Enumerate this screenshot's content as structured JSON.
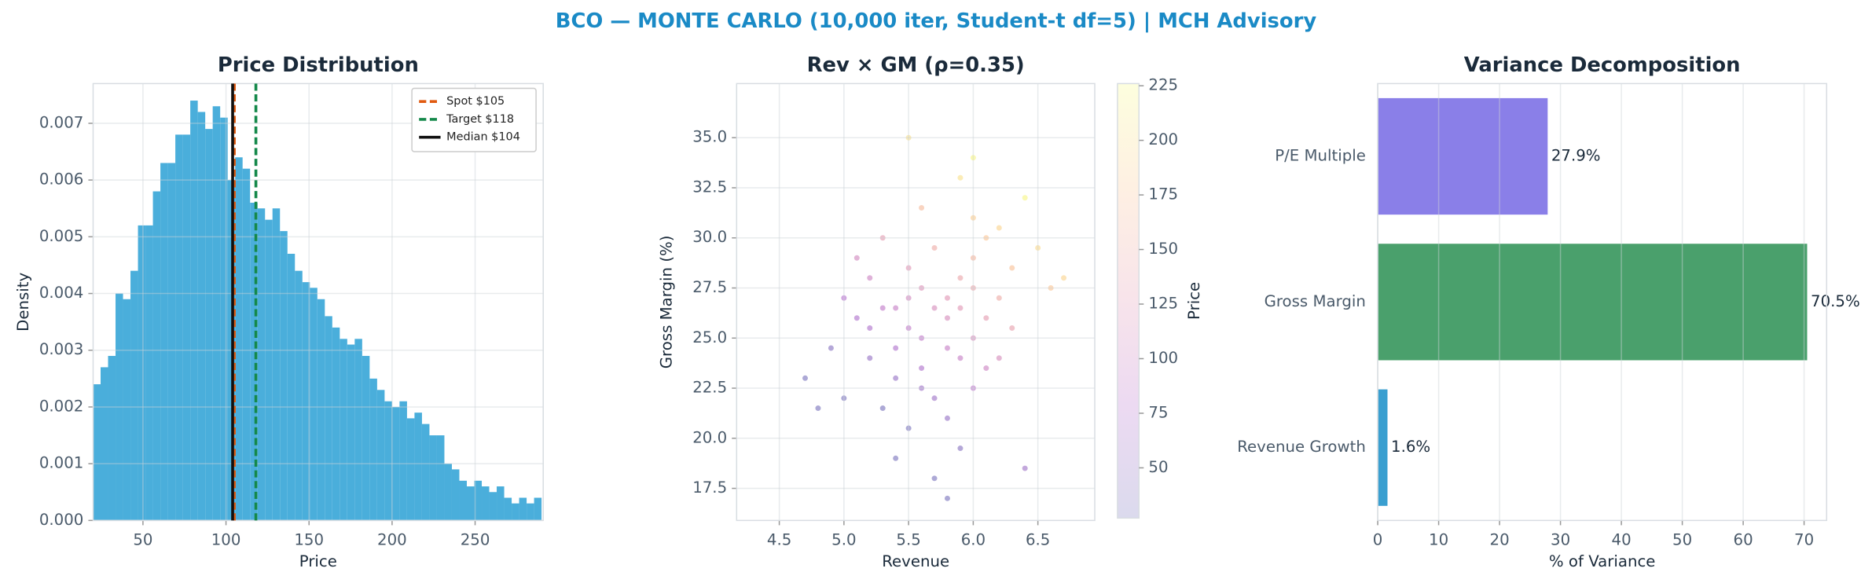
{
  "title": "BCO — MONTE CARLO (10,000 iter, Student-t df=5) | MCH Advisory",
  "chart_data": [
    {
      "type": "histogram",
      "title": "Price Distribution",
      "xlabel": "Price",
      "ylabel": "Density",
      "color": "#4aaedb",
      "grid": true,
      "bins": [
        20,
        24.5,
        29,
        33.5,
        38,
        42.5,
        47,
        51.5,
        56,
        60.5,
        65,
        69.5,
        74,
        78.5,
        83,
        87.5,
        92,
        96.5,
        101,
        105.5,
        110,
        114.5,
        119,
        123.5,
        128,
        132.5,
        137,
        141.5,
        146,
        150.5,
        155,
        159.5,
        164,
        168.5,
        173,
        177.5,
        182,
        186.5,
        191,
        195.5,
        200,
        204.5,
        209,
        213.5,
        218,
        222.5,
        227,
        231.5,
        236,
        240.5,
        245,
        249.5,
        254,
        258.5,
        263,
        267.5,
        272,
        276.5,
        281,
        285.5,
        290
      ],
      "values": [
        0.0024,
        0.0027,
        0.0029,
        0.004,
        0.0039,
        0.0044,
        0.0052,
        0.0052,
        0.0058,
        0.0063,
        0.0063,
        0.0068,
        0.0068,
        0.0074,
        0.0072,
        0.0069,
        0.0073,
        0.0071,
        0.006,
        0.0064,
        0.0062,
        0.0056,
        0.0055,
        0.0053,
        0.0055,
        0.0051,
        0.0047,
        0.0044,
        0.0042,
        0.0041,
        0.0039,
        0.0036,
        0.0034,
        0.0032,
        0.0031,
        0.0032,
        0.0029,
        0.0025,
        0.0023,
        0.0021,
        0.002,
        0.0021,
        0.0018,
        0.0019,
        0.0017,
        0.0015,
        0.0015,
        0.001,
        0.0009,
        0.0007,
        0.0006,
        0.0007,
        0.0006,
        0.0005,
        0.0006,
        0.0004,
        0.0003,
        0.0004,
        0.0003,
        0.0004
      ],
      "xlim": [
        20,
        291
      ],
      "xticks": [
        50,
        100,
        150,
        200,
        250
      ],
      "ylim": [
        0,
        0.0077
      ],
      "yticks": [
        {
          "value": 0,
          "label": "0.000"
        },
        {
          "value": 0.001,
          "label": "0.001"
        },
        {
          "value": 0.002,
          "label": "0.002"
        },
        {
          "value": 0.003,
          "label": "0.003"
        },
        {
          "value": 0.004,
          "label": "0.004"
        },
        {
          "value": 0.005,
          "label": "0.005"
        },
        {
          "value": 0.006,
          "label": "0.006"
        },
        {
          "value": 0.007,
          "label": "0.007"
        }
      ],
      "legend": "upper right",
      "vlines": [
        {
          "name": "Spot $105",
          "value": 105,
          "color": "#e05a10",
          "style": "dashed"
        },
        {
          "name": "Target $118",
          "value": 118,
          "color": "#14884a",
          "style": "dashed"
        },
        {
          "name": "Median $104",
          "value": 104,
          "color": "#111111",
          "style": "solid"
        }
      ]
    },
    {
      "type": "scatter",
      "title": "Rev × GM (ρ=0.35)",
      "xlabel": "Revenue",
      "ylabel": "Gross Margin (%)",
      "grid": true,
      "x": [
        5.2,
        5.4,
        5.6,
        5.8,
        6.0,
        6.2,
        5.5,
        5.7,
        5.9,
        6.1,
        5.3,
        5.6,
        5.8,
        6.0,
        6.3,
        5.1,
        5.4,
        5.7,
        6.0,
        6.4,
        4.9,
        5.2,
        5.5,
        5.8,
        6.1,
        6.5,
        5.0,
        5.3,
        5.6,
        5.9,
        6.2,
        6.6,
        5.4,
        5.7,
        6.0,
        5.5,
        5.8,
        6.1,
        5.2,
        5.6,
        5.9,
        6.3,
        5.0,
        5.4,
        5.7,
        6.0,
        5.3,
        5.6,
        5.9,
        6.2,
        4.7,
        5.1,
        5.5,
        6.7,
        4.8,
        5.8,
        6.4,
        5.5,
        5.9,
        6.0
      ],
      "y": [
        24.0,
        26.5,
        23.5,
        27.0,
        29.0,
        30.5,
        25.5,
        22.0,
        28.0,
        26.0,
        21.5,
        27.5,
        24.5,
        31.0,
        28.5,
        26.0,
        23.0,
        29.5,
        25.0,
        32.0,
        24.5,
        28.0,
        20.5,
        26.0,
        23.5,
        29.5,
        22.0,
        30.0,
        25.0,
        33.0,
        27.0,
        27.5,
        19.0,
        26.5,
        22.5,
        28.5,
        21.0,
        30.0,
        25.5,
        31.5,
        24.0,
        25.5,
        27.0,
        24.5,
        18.0,
        27.5,
        26.5,
        22.5,
        26.5,
        24.0,
        23.0,
        29.0,
        35.0,
        28.0,
        21.5,
        17.0,
        18.5,
        27.0,
        19.5,
        34.0
      ],
      "c": [
        52,
        94,
        70,
        124,
        160,
        190,
        88,
        58,
        142,
        130,
        30,
        118,
        94,
        184,
        172,
        70,
        52,
        148,
        112,
        220,
        40,
        100,
        30,
        112,
        100,
        196,
        30,
        130,
        88,
        202,
        148,
        178,
        30,
        112,
        82,
        124,
        52,
        178,
        70,
        166,
        94,
        136,
        76,
        70,
        30,
        142,
        88,
        58,
        124,
        112,
        30,
        106,
        202,
        190,
        30,
        30,
        58,
        106,
        40,
        220
      ],
      "colormap": "plasma",
      "clim": [
        27,
        226
      ],
      "cticks": [
        50,
        75,
        100,
        125,
        150,
        175,
        200,
        225
      ],
      "colorbar_label": "Price",
      "xlim": [
        4.17,
        6.94
      ],
      "xticks": [
        4.5,
        {
          "value": 5,
          "label": "5.0"
        },
        5.5,
        {
          "value": 6,
          "label": "6.0"
        },
        6.5
      ],
      "ylim": [
        15.9,
        37.7
      ],
      "yticks": [
        17.5,
        {
          "value": 20,
          "label": "20.0"
        },
        22.5,
        {
          "value": 25,
          "label": "25.0"
        },
        27.5,
        {
          "value": 30,
          "label": "30.0"
        },
        32.5,
        {
          "value": 35,
          "label": "35.0"
        }
      ]
    },
    {
      "type": "bar",
      "orientation": "horizontal",
      "title": "Variance Decomposition",
      "xlabel": "% of Variance",
      "grid": true,
      "categories": [
        "Revenue Growth",
        "Gross Margin",
        "P/E Multiple"
      ],
      "values": [
        1.6,
        70.5,
        27.9
      ],
      "value_labels": [
        "1.6%",
        "70.5%",
        "27.9%"
      ],
      "colors": [
        "#3a9fd0",
        "#4aa06c",
        "#8a7fe8"
      ],
      "xlim": [
        0,
        73.7
      ],
      "xticks": [
        0,
        10,
        20,
        30,
        40,
        50,
        60,
        70
      ]
    }
  ]
}
